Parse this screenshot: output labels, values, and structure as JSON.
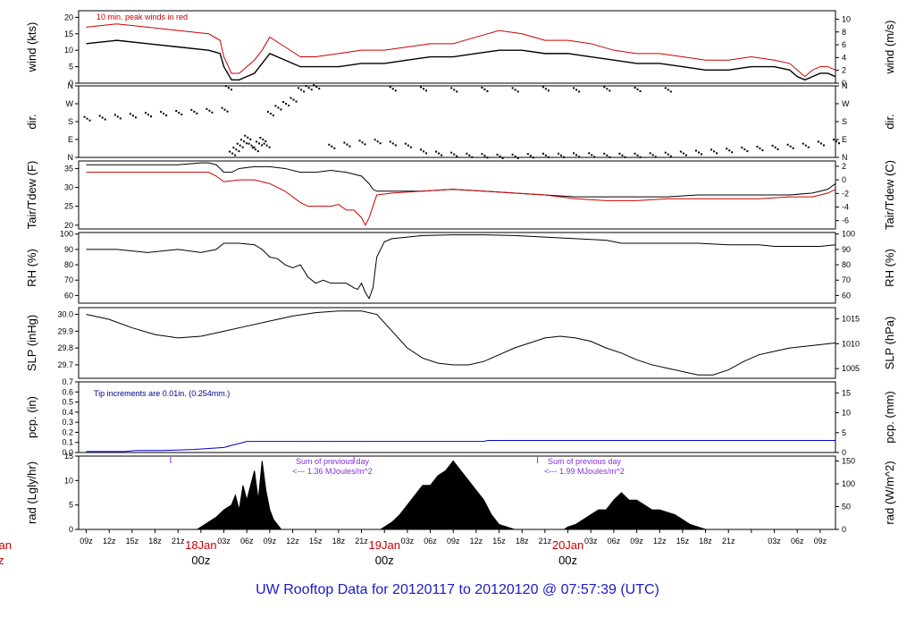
{
  "footer_title": "UW Rooftop Data for 20120117  to  20120120 @ 07:57:39  (UTC)",
  "colors": {
    "red": "#cc0000",
    "blue": "#0000cc",
    "purple": "#8a2be2",
    "black": "#000000"
  },
  "chart_data": [
    {
      "type": "line",
      "panel": "wind",
      "ylabel": "wind (kts)",
      "ylabel_right": "wind (m/s)",
      "ylim": [
        0,
        22
      ],
      "yticks": [
        "0",
        "5",
        "10",
        "15",
        "20"
      ],
      "right_ticks": [
        "0",
        "2",
        "4",
        "6",
        "8",
        "10"
      ],
      "annotation": "10 min. peak winds in red",
      "series": [
        {
          "color": "#000000",
          "x": [
            0,
            4,
            8,
            12,
            16,
            17.5,
            18,
            19,
            20,
            21,
            22,
            23,
            24,
            26,
            28,
            30,
            33,
            36,
            39,
            42,
            45,
            48,
            51,
            54,
            57,
            60,
            63,
            66,
            69,
            72,
            75,
            78,
            81,
            84,
            87,
            90,
            92,
            93,
            94,
            95,
            96,
            97,
            98
          ],
          "values": [
            12,
            13,
            12,
            11,
            10,
            9,
            5,
            1,
            1,
            2,
            3,
            6,
            9,
            7,
            5,
            5,
            5,
            6,
            6,
            7,
            8,
            8,
            9,
            10,
            10,
            9,
            9,
            8,
            7,
            6,
            6,
            5,
            4,
            4,
            5,
            5,
            4,
            2,
            1,
            2,
            3,
            3,
            2
          ]
        },
        {
          "color": "#cc0000",
          "x": [
            0,
            4,
            8,
            12,
            16,
            17.5,
            18,
            19,
            20,
            21,
            22,
            23,
            24,
            26,
            28,
            30,
            33,
            36,
            39,
            42,
            45,
            48,
            51,
            54,
            57,
            60,
            63,
            66,
            69,
            72,
            75,
            78,
            81,
            84,
            87,
            90,
            92,
            93,
            94,
            95,
            96,
            97,
            98
          ],
          "values": [
            17,
            18,
            17,
            16,
            15,
            13,
            8,
            3,
            3,
            5,
            7,
            10,
            14,
            11,
            8,
            8,
            9,
            10,
            10,
            11,
            12,
            12,
            14,
            16,
            15,
            13,
            13,
            12,
            10,
            9,
            9,
            8,
            7,
            7,
            8,
            7,
            6,
            4,
            2,
            4,
            5,
            5,
            4
          ]
        }
      ]
    },
    {
      "type": "scatter",
      "panel": "dir",
      "ylabel": "dir.",
      "ylabel_right": "dir.",
      "yticks": [
        "N",
        "E",
        "S",
        "W",
        "N"
      ],
      "right_ticks": [
        "N",
        "E",
        "S",
        "W",
        "N"
      ],
      "ylim": [
        0,
        360
      ],
      "series": [
        {
          "color": "#000000",
          "x": [
            0,
            2,
            4,
            6,
            8,
            10,
            12,
            14,
            16,
            18,
            18.5,
            19,
            19.5,
            20,
            20.5,
            21,
            21.5,
            22,
            22.5,
            23,
            23.5,
            24,
            25,
            26,
            27,
            28,
            29,
            30,
            32,
            34,
            36,
            38,
            40,
            42,
            44,
            46,
            48,
            50,
            52,
            54,
            56,
            58,
            60,
            62,
            64,
            66,
            68,
            70,
            72,
            74,
            76,
            78,
            80,
            82,
            84,
            86,
            88,
            90,
            92,
            94,
            96,
            98
          ],
          "values": [
            195,
            200,
            205,
            210,
            215,
            220,
            225,
            230,
            235,
            240,
            350,
            20,
            40,
            60,
            80,
            100,
            60,
            40,
            70,
            90,
            60,
            220,
            250,
            270,
            290,
            340,
            350,
            355,
            55,
            65,
            75,
            80,
            70,
            60,
            30,
            20,
            15,
            10,
            8,
            5,
            5,
            8,
            10,
            10,
            12,
            12,
            10,
            10,
            10,
            12,
            15,
            20,
            25,
            30,
            35,
            40,
            45,
            50,
            55,
            60,
            70,
            80
          ]
        },
        {
          "color": "#000000",
          "x": [
            40,
            44,
            48,
            52,
            56,
            60,
            64,
            68,
            72,
            76
          ],
          "values": [
            345,
            345,
            340,
            342,
            340,
            345,
            340,
            345,
            342,
            340
          ]
        }
      ]
    },
    {
      "type": "line",
      "panel": "tair",
      "ylabel": "Tair/Tdew (F)",
      "ylabel_right": "Tair/Tdew (C)",
      "ylim": [
        19,
        37
      ],
      "yticks": [
        "20",
        "25",
        "30",
        "35"
      ],
      "right_ticks": [
        "-6",
        "-4",
        "-2",
        "0",
        "2"
      ],
      "series": [
        {
          "color": "#000000",
          "x": [
            0,
            4,
            8,
            12,
            15,
            16,
            17,
            18,
            19,
            20,
            22,
            24,
            26,
            28,
            30,
            32,
            34,
            36,
            37,
            37.5,
            38,
            40,
            44,
            48,
            52,
            56,
            60,
            64,
            68,
            72,
            76,
            80,
            84,
            88,
            92,
            95,
            97,
            98
          ],
          "values": [
            36,
            36,
            36,
            36,
            36.5,
            36.5,
            36,
            34,
            34,
            35,
            35.5,
            35.5,
            35,
            34,
            34,
            34.5,
            34,
            33,
            31,
            29.5,
            29,
            29,
            29,
            29.5,
            29,
            28.5,
            28,
            27.5,
            27.5,
            27.5,
            27.5,
            28,
            28,
            28,
            28,
            28.5,
            29.5,
            31
          ]
        },
        {
          "color": "#cc0000",
          "x": [
            0,
            4,
            8,
            12,
            15,
            16,
            17,
            18,
            20,
            22,
            24,
            26,
            28,
            29,
            30,
            31,
            32,
            33,
            34,
            35,
            36,
            36.5,
            37,
            37.5,
            38,
            40,
            44,
            48,
            52,
            56,
            60,
            64,
            68,
            72,
            76,
            80,
            84,
            88,
            92,
            95,
            97,
            98
          ],
          "values": [
            34,
            34,
            34,
            34,
            34,
            34,
            33,
            31.5,
            32,
            32,
            31,
            29,
            26,
            25,
            25,
            25,
            25,
            25.5,
            24,
            24,
            22,
            20,
            22,
            25,
            28,
            28.5,
            29,
            29.5,
            29,
            28.5,
            28,
            27,
            26.5,
            26.5,
            27,
            27,
            27,
            27,
            27.5,
            27.5,
            28.5,
            29.5
          ]
        }
      ]
    },
    {
      "type": "line",
      "panel": "rh",
      "ylabel": "RH (%)",
      "ylabel_right": "RH (%)",
      "ylim": [
        55,
        101
      ],
      "yticks": [
        "60",
        "70",
        "80",
        "90",
        "100"
      ],
      "right_ticks": [
        "60",
        "70",
        "80",
        "90",
        "100"
      ],
      "series": [
        {
          "color": "#000000",
          "x": [
            0,
            4,
            8,
            12,
            15,
            17,
            18,
            20,
            22,
            23,
            24,
            25,
            26,
            27,
            28,
            29,
            30,
            31,
            32,
            33,
            34,
            35,
            35.5,
            36,
            36.5,
            37,
            37.5,
            38,
            39,
            40,
            44,
            48,
            52,
            56,
            60,
            64,
            68,
            70,
            72,
            76,
            80,
            84,
            88,
            90,
            92,
            94,
            96,
            98
          ],
          "values": [
            90,
            90,
            88,
            90,
            88,
            90,
            94,
            94,
            93,
            90,
            85,
            84,
            80,
            78,
            80,
            72,
            68,
            70,
            68,
            68,
            68,
            65,
            64,
            68,
            62,
            58,
            65,
            85,
            95,
            97,
            99,
            99.5,
            99.5,
            99,
            98,
            97,
            96,
            94,
            94,
            94,
            94,
            93,
            93,
            92,
            92,
            92,
            92,
            93
          ]
        }
      ]
    },
    {
      "type": "line",
      "panel": "slp",
      "ylabel": "SLP (inHg)",
      "ylabel_right": "SLP (hPa)",
      "ylim": [
        29.62,
        30.04
      ],
      "yticks": [
        "29.7",
        "29.8",
        "29.9",
        "30.0"
      ],
      "right_ticks": [
        "1005",
        "1010",
        "1015"
      ],
      "series": [
        {
          "color": "#000000",
          "x": [
            0,
            3,
            6,
            9,
            12,
            15,
            18,
            21,
            24,
            27,
            30,
            33,
            36,
            38,
            40,
            42,
            44,
            46,
            48,
            50,
            52,
            54,
            56,
            58,
            60,
            62,
            64,
            66,
            68,
            70,
            72,
            74,
            76,
            78,
            80,
            82,
            84,
            86,
            88,
            90,
            92,
            94,
            96,
            98
          ],
          "values": [
            30.0,
            29.97,
            29.92,
            29.88,
            29.86,
            29.87,
            29.9,
            29.93,
            29.96,
            29.99,
            30.01,
            30.02,
            30.02,
            30.0,
            29.9,
            29.8,
            29.74,
            29.71,
            29.7,
            29.7,
            29.72,
            29.76,
            29.8,
            29.83,
            29.86,
            29.87,
            29.86,
            29.84,
            29.8,
            29.77,
            29.73,
            29.7,
            29.68,
            29.66,
            29.64,
            29.64,
            29.67,
            29.72,
            29.76,
            29.78,
            29.8,
            29.81,
            29.82,
            29.83
          ]
        }
      ]
    },
    {
      "type": "line",
      "panel": "pcp",
      "ylabel": "pcp. (in)",
      "ylabel_right": "pcp. (mm)",
      "ylim": [
        0,
        0.7
      ],
      "yticks": [
        "0.0",
        "0.1",
        "0.2",
        "0.3",
        "0.4",
        "0.5",
        "0.6",
        "0.7"
      ],
      "right_ticks": [
        "0",
        "5",
        "10",
        "15"
      ],
      "annotation": "Tip increments are 0.01in. (0.254mm.)",
      "series": [
        {
          "color": "#0000cc",
          "x": [
            0,
            5,
            6.5,
            10,
            14,
            16,
            18,
            19,
            20,
            20.5,
            21,
            22,
            25,
            35,
            45,
            52,
            52.5,
            60,
            70,
            80,
            90,
            98
          ],
          "values": [
            0.01,
            0.01,
            0.02,
            0.02,
            0.03,
            0.04,
            0.05,
            0.07,
            0.09,
            0.1,
            0.11,
            0.11,
            0.11,
            0.11,
            0.11,
            0.11,
            0.12,
            0.12,
            0.12,
            0.12,
            0.12,
            0.12
          ]
        }
      ]
    },
    {
      "type": "area",
      "panel": "rad",
      "ylabel": "rad (Lgly/hr)",
      "ylabel_right": "rad (W/m^2)",
      "ylim": [
        0,
        15
      ],
      "yticks": [
        "0",
        "5",
        "10",
        "15"
      ],
      "right_ticks": [
        "0",
        "50",
        "100",
        "150"
      ],
      "annotations": [
        "Sum of previous day",
        "<--- 1.36 MJoules/m^2",
        "Sum of previous day",
        "<--- 1.99 MJoules/m^2"
      ],
      "series": [
        {
          "color": "#000000",
          "x": [
            14.5,
            15,
            16,
            17,
            18,
            19,
            19.5,
            20,
            20.5,
            21,
            21.5,
            22,
            22.5,
            23,
            23.5,
            24,
            24.5,
            25,
            25.5,
            38.5,
            39,
            40,
            41,
            42,
            43,
            44,
            45,
            46,
            47,
            48,
            49,
            50,
            51,
            52,
            53,
            54,
            55,
            56,
            62.5,
            63,
            64,
            65,
            66,
            67,
            68,
            69,
            70,
            71,
            72,
            73,
            74,
            75,
            76,
            77,
            78,
            79,
            80,
            81
          ],
          "values": [
            0,
            0.5,
            1.5,
            2.5,
            4,
            5,
            7,
            4,
            9,
            6,
            9,
            12,
            6,
            14,
            8,
            4,
            2,
            1,
            0,
            0,
            0.5,
            1.5,
            3,
            5,
            7,
            9,
            9,
            11,
            12,
            14,
            12,
            10,
            8,
            6,
            3,
            1,
            0.5,
            0,
            0,
            0.5,
            1,
            2,
            3,
            4,
            4,
            6,
            7.5,
            6,
            6,
            5,
            4,
            4,
            3.5,
            3,
            2,
            1,
            0.5,
            0
          ]
        }
      ]
    }
  ],
  "time_axis": {
    "x_range": [
      -1,
      98
    ],
    "tick_positions": [
      0,
      3,
      6,
      9,
      12,
      15,
      18,
      21,
      24,
      27,
      30,
      33,
      36,
      39,
      42,
      45,
      48,
      51,
      54,
      57,
      60,
      63,
      66,
      69,
      72,
      75,
      78,
      81,
      84,
      87,
      90,
      93,
      96
    ],
    "tick_labels": [
      "09z",
      "12z",
      "15z",
      "18z",
      "21z",
      "00z",
      "03z",
      "06z",
      "09z",
      "12z",
      "15z",
      "18z",
      "21z",
      "00z",
      "03z",
      "06z",
      "09z",
      "12z",
      "15z",
      "18z",
      "21z",
      "00z",
      "03z",
      "06z",
      "09z",
      "12z",
      "15z",
      "18z",
      "21z",
      "00z",
      "03z",
      "06z",
      "09z"
    ],
    "day_labels": [
      {
        "x": 15,
        "date": "18Jan",
        "hour": "00z"
      },
      {
        "x": 39,
        "date": "19Jan",
        "hour": "00z"
      },
      {
        "x": 63,
        "date": "20Jan",
        "hour": "00z"
      }
    ],
    "edge_label": {
      "date": "Jan",
      "hour": "z"
    }
  }
}
